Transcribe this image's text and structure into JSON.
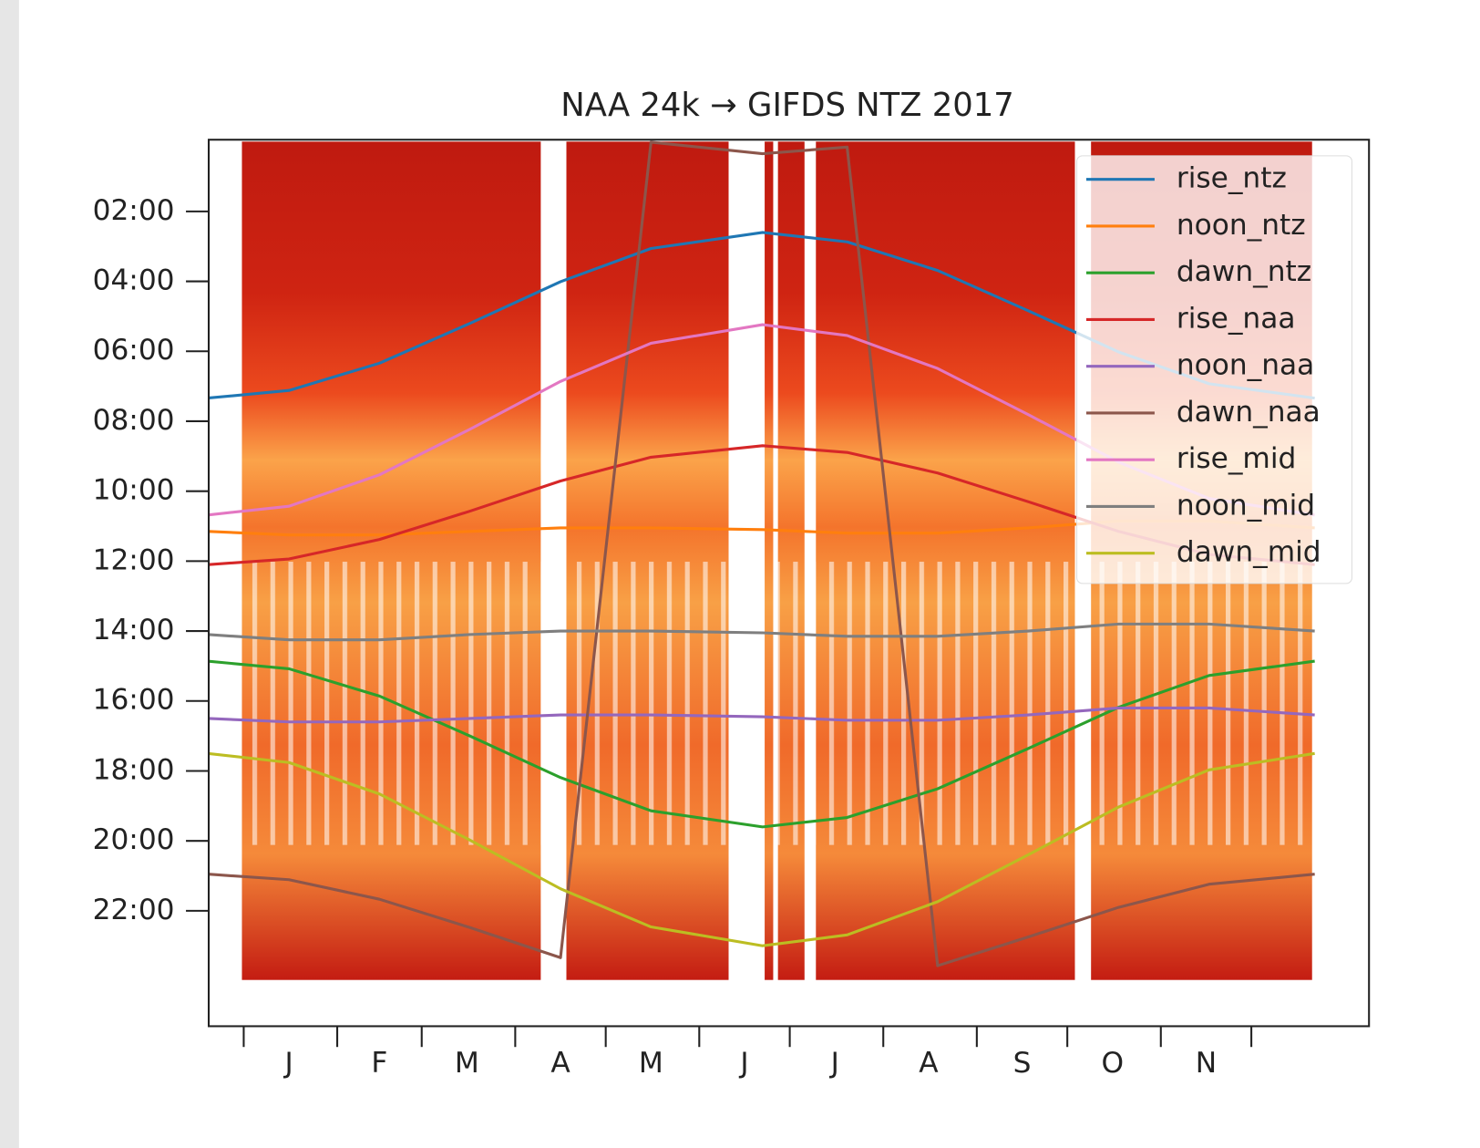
{
  "chart_data": {
    "type": "line",
    "title": "NAA 24k  →  GIFDS NTZ     2017",
    "x": [
      -12,
      15,
      45,
      75,
      105,
      135,
      172,
      200,
      230,
      260,
      290,
      320,
      355
    ],
    "series": [
      {
        "name": "rise_ntz",
        "color": "#1f77b4",
        "values": [
          7.34,
          7.12,
          6.34,
          5.2,
          4.01,
          3.06,
          2.6,
          2.87,
          3.69,
          4.84,
          6.02,
          6.93,
          7.34
        ]
      },
      {
        "name": "noon_ntz",
        "color": "#ff7f0e",
        "values": [
          11.15,
          11.25,
          11.25,
          11.15,
          11.05,
          11.05,
          11.1,
          11.2,
          11.2,
          11.05,
          10.85,
          10.85,
          11.05
        ]
      },
      {
        "name": "dawn_ntz",
        "color": "#2ca02c",
        "values": [
          14.86,
          15.08,
          15.86,
          17.0,
          18.19,
          19.14,
          19.6,
          19.33,
          18.51,
          17.36,
          16.18,
          15.27,
          14.86
        ]
      },
      {
        "name": "rise_naa",
        "color": "#d62728",
        "values": [
          12.1,
          11.94,
          11.38,
          10.57,
          9.71,
          9.03,
          8.7,
          8.89,
          9.48,
          10.3,
          11.15,
          11.81,
          12.1
        ]
      },
      {
        "name": "noon_naa",
        "color": "#9467bd",
        "values": [
          16.5,
          16.6,
          16.6,
          16.5,
          16.4,
          16.4,
          16.45,
          16.55,
          16.55,
          16.4,
          16.2,
          16.2,
          16.4
        ]
      },
      {
        "name": "dawn_naa",
        "color": "#8c564b",
        "values": [
          20.95,
          21.11,
          21.67,
          22.48,
          23.34,
          0.02,
          0.35,
          0.16,
          23.57,
          22.75,
          21.9,
          21.24,
          20.95
        ]
      },
      {
        "name": "rise_mid",
        "color": "#e377c2",
        "values": [
          10.68,
          10.43,
          9.53,
          8.23,
          6.86,
          5.77,
          5.24,
          5.55,
          6.49,
          7.81,
          9.17,
          10.21,
          10.68
        ]
      },
      {
        "name": "noon_mid",
        "color": "#7f7f7f",
        "values": [
          14.1,
          14.25,
          14.25,
          14.1,
          14.0,
          14.0,
          14.05,
          14.15,
          14.15,
          14.0,
          13.8,
          13.8,
          14.0
        ]
      },
      {
        "name": "dawn_mid",
        "color": "#bcbd22",
        "values": [
          17.5,
          17.76,
          18.66,
          19.98,
          21.37,
          22.46,
          23.0,
          22.69,
          21.74,
          20.4,
          19.03,
          17.97,
          17.5
        ]
      }
    ],
    "xlim": [
      -11.6,
      373
    ],
    "xtick_marks": [
      0,
      31,
      59,
      90,
      120,
      151,
      181,
      212,
      243,
      273,
      304,
      334
    ],
    "xticks": [
      {
        "value": 15,
        "label": "J"
      },
      {
        "value": 45,
        "label": "F"
      },
      {
        "value": 74,
        "label": "M"
      },
      {
        "value": 105,
        "label": "A"
      },
      {
        "value": 135,
        "label": "M"
      },
      {
        "value": 166,
        "label": "J"
      },
      {
        "value": 196,
        "label": "J"
      },
      {
        "value": 227,
        "label": "A"
      },
      {
        "value": 258,
        "label": "S"
      },
      {
        "value": 288,
        "label": "O"
      },
      {
        "value": 319,
        "label": "N"
      }
    ],
    "ylim": [
      -0.05,
      25.3
    ],
    "y_inverted": true,
    "yticks": [
      {
        "value": 2,
        "label": "02:00"
      },
      {
        "value": 4,
        "label": "04:00"
      },
      {
        "value": 6,
        "label": "06:00"
      },
      {
        "value": 8,
        "label": "08:00"
      },
      {
        "value": 10,
        "label": "10:00"
      },
      {
        "value": 12,
        "label": "12:00"
      },
      {
        "value": 14,
        "label": "14:00"
      },
      {
        "value": 16,
        "label": "16:00"
      },
      {
        "value": 18,
        "label": "18:00"
      },
      {
        "value": 20,
        "label": "20:00"
      },
      {
        "value": 22,
        "label": "22:00"
      }
    ],
    "legend": "upper right"
  }
}
